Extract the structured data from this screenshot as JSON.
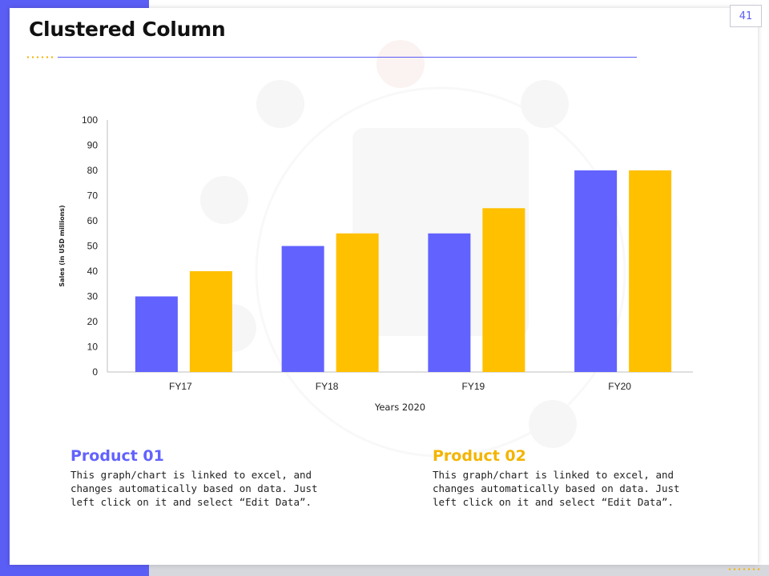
{
  "page": {
    "number": "41",
    "title": "Clustered Column"
  },
  "colors": {
    "accent": "#5b5ef5",
    "product_01": "#6262ff",
    "product_02": "#ffc000",
    "gold": "#f4b400"
  },
  "products": [
    {
      "title": "Product 01",
      "color": "#6262ff",
      "description": "This graph/chart is linked to excel, and changes automatically based on data. Just left click on it and select “Edit Data”."
    },
    {
      "title": "Product 02",
      "color": "#f4b400",
      "description": "This graph/chart is linked to excel, and changes automatically based on data. Just left click on it and select “Edit Data”."
    }
  ],
  "chart_data": {
    "type": "bar",
    "title": "",
    "xlabel": "Years 2020",
    "ylabel": "Sales (in USD millions)",
    "categories": [
      "FY17",
      "FY18",
      "FY19",
      "FY20"
    ],
    "series": [
      {
        "name": "Product 01",
        "values": [
          30,
          50,
          55,
          80
        ],
        "color": "#6262ff"
      },
      {
        "name": "Product 02",
        "values": [
          40,
          55,
          65,
          80
        ],
        "color": "#ffc000"
      }
    ],
    "ylim": [
      0,
      100
    ],
    "yticks": [
      0,
      10,
      20,
      30,
      40,
      50,
      60,
      70,
      80,
      90,
      100
    ],
    "grid": false,
    "legend": "none"
  }
}
